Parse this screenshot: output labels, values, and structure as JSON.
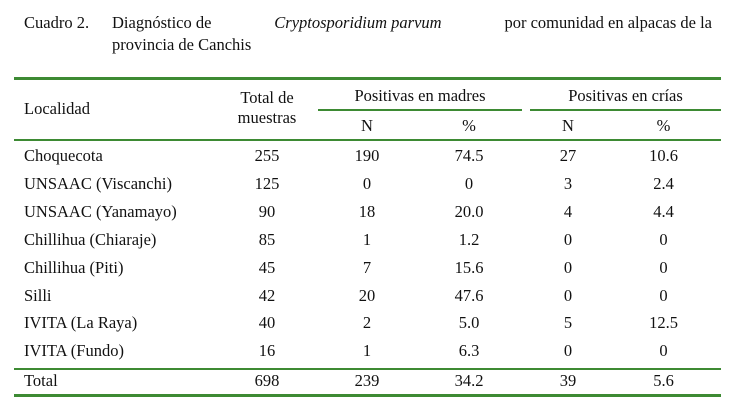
{
  "caption": {
    "label": "Cuadro 2.",
    "line1_prefix": "Diagnóstico de",
    "line1_italic": "Cryptosporidium parvum",
    "line1_suffix": "por comunidad en alpacas de la",
    "line2": "provincia de Canchis"
  },
  "table": {
    "headers": {
      "localidad": "Localidad",
      "total_line1": "Total de",
      "total_line2": "muestras",
      "group_madres": "Positivas en madres",
      "group_crias": "Positivas en crías",
      "n_madres": "N",
      "pct_madres": "%",
      "n_crias": "N",
      "pct_crias": "%"
    },
    "rows": [
      {
        "localidad": "Choquecota",
        "total": "255",
        "madres_n": "190",
        "madres_pct": "74.5",
        "crias_n": "27",
        "crias_pct": "10.6"
      },
      {
        "localidad": "UNSAAC (Viscanchi)",
        "total": "125",
        "madres_n": "0",
        "madres_pct": "0",
        "crias_n": "3",
        "crias_pct": "2.4"
      },
      {
        "localidad": "UNSAAC (Yanamayo)",
        "total": "90",
        "madres_n": "18",
        "madres_pct": "20.0",
        "crias_n": "4",
        "crias_pct": "4.4"
      },
      {
        "localidad": "Chillihua (Chiaraje)",
        "total": "85",
        "madres_n": "1",
        "madres_pct": "1.2",
        "crias_n": "0",
        "crias_pct": "0"
      },
      {
        "localidad": "Chillihua (Piti)",
        "total": "45",
        "madres_n": "7",
        "madres_pct": "15.6",
        "crias_n": "0",
        "crias_pct": "0"
      },
      {
        "localidad": "Silli",
        "total": "42",
        "madres_n": "20",
        "madres_pct": "47.6",
        "crias_n": "0",
        "crias_pct": "0"
      },
      {
        "localidad": "IVITA (La Raya)",
        "total": "40",
        "madres_n": "2",
        "madres_pct": "5.0",
        "crias_n": "5",
        "crias_pct": "12.5"
      },
      {
        "localidad": "IVITA (Fundo)",
        "total": "16",
        "madres_n": "1",
        "madres_pct": "6.3",
        "crias_n": "0",
        "crias_pct": "0"
      }
    ],
    "total_row": {
      "localidad": "Total",
      "total": "698",
      "madres_n": "239",
      "madres_pct": "34.2",
      "crias_n": "39",
      "crias_pct": "5.6"
    }
  },
  "colors": {
    "rule_green": "#3d8a33",
    "text": "#111111"
  }
}
